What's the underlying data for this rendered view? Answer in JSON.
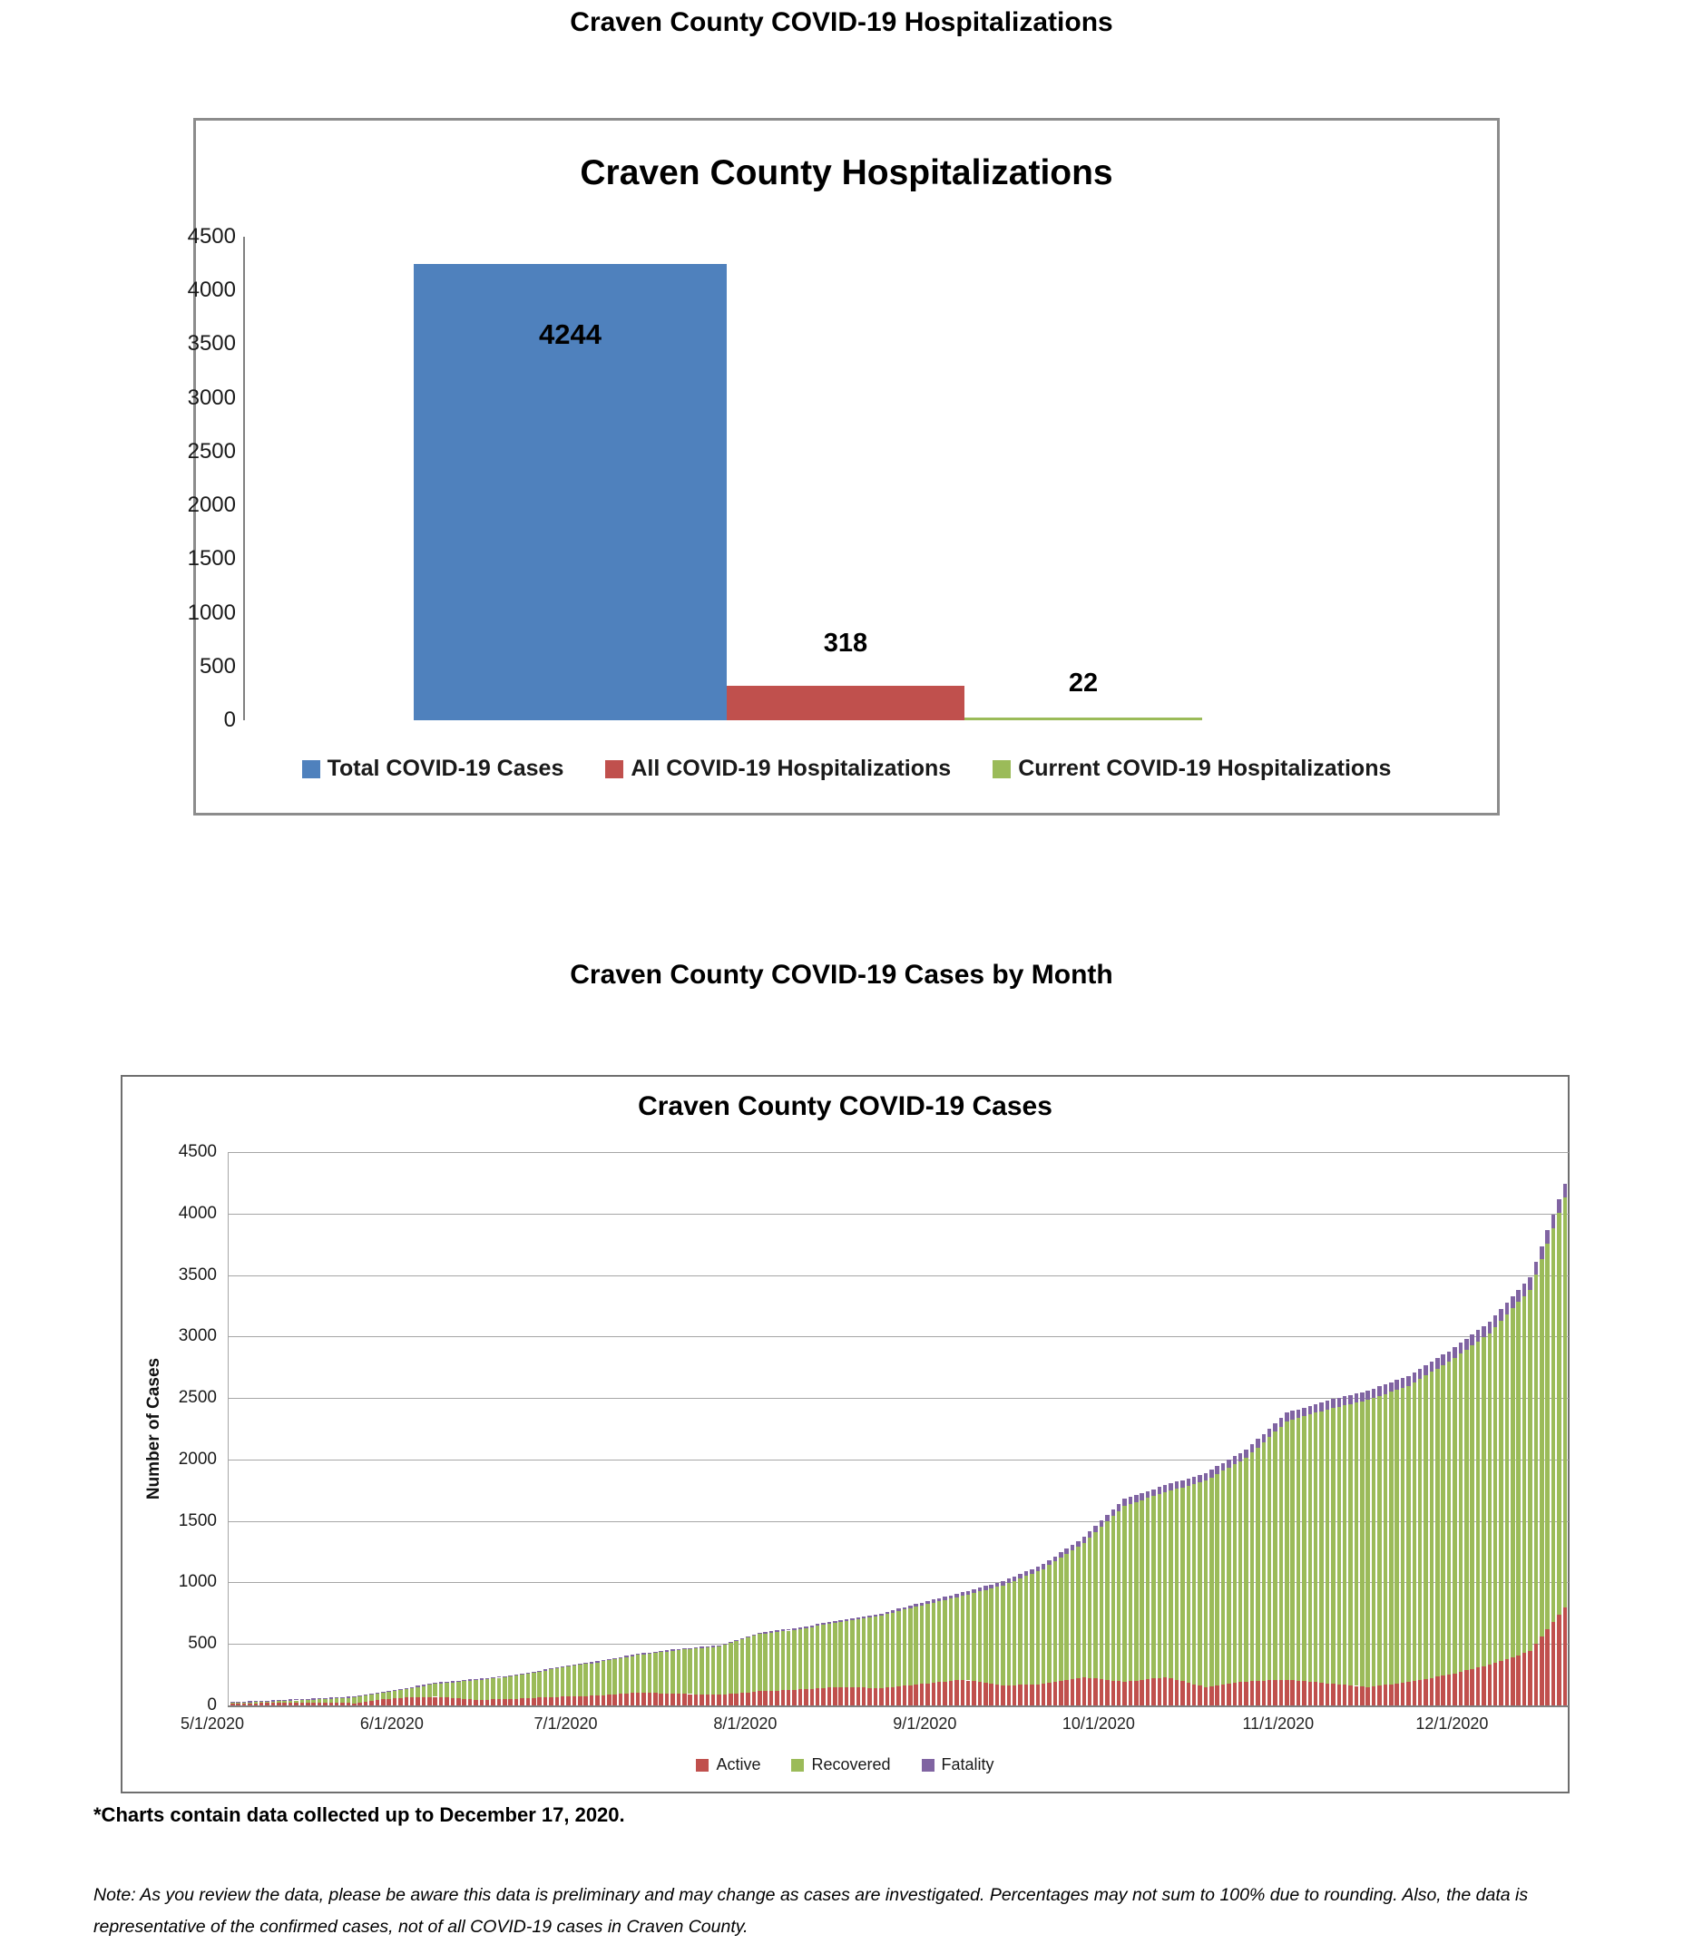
{
  "page": {
    "heading_top": "Craven County COVID-19 Hospitalizations",
    "heading_middle": "Craven County COVID-19 Cases by Month",
    "footnote": "*Charts contain data collected up to December 17, 2020.",
    "note": "Note: As you review the data, please be aware this data is preliminary and may change as cases are investigated. Percentages may not sum to 100% due to rounding. Also, the data is representative of the confirmed cases, not of all COVID-19 cases in Craven County."
  },
  "colors": {
    "blue": "#4F81BD",
    "red": "#C0504D",
    "green": "#9BBB59",
    "purple": "#8064A2",
    "gridline": "#A6A6A6",
    "axis": "#808080"
  },
  "chart_data": [
    {
      "type": "bar",
      "title": "Craven County Hospitalizations",
      "categories": [
        "Total COVID-19 Cases",
        "All COVID-19 Hospitalizations",
        "Current COVID-19 Hospitalizations"
      ],
      "values": [
        4244,
        318,
        22
      ],
      "data_labels": [
        "4244",
        "318",
        "22"
      ],
      "colors": [
        "#4F81BD",
        "#C0504D",
        "#9BBB59"
      ],
      "ylim": [
        0,
        4500
      ],
      "ytick_step": 500,
      "grid": false,
      "legend_position": "bottom"
    },
    {
      "type": "bar",
      "stacked": true,
      "title": "Craven County COVID-19 Cases",
      "ylabel": "Number of Cases",
      "ylim": [
        0,
        4500
      ],
      "ytick_step": 500,
      "grid": true,
      "legend_position": "bottom",
      "x_tick_labels": [
        "5/1/2020",
        "6/1/2020",
        "7/1/2020",
        "8/1/2020",
        "9/1/2020",
        "10/1/2020",
        "11/1/2020",
        "12/1/2020"
      ],
      "x_tick_days": [
        0,
        31,
        61,
        92,
        123,
        153,
        184,
        214
      ],
      "total_days": 231,
      "date_range": [
        "5/1/2020",
        "12/17/2020"
      ],
      "sampled_weekly_estimates": {
        "dates": [
          "5/1/2020",
          "5/8/2020",
          "5/15/2020",
          "5/22/2020",
          "5/29/2020",
          "6/5/2020",
          "6/12/2020",
          "6/19/2020",
          "6/26/2020",
          "7/3/2020",
          "7/10/2020",
          "7/17/2020",
          "7/24/2020",
          "7/31/2020",
          "8/7/2020",
          "8/14/2020",
          "8/21/2020",
          "8/28/2020",
          "9/4/2020",
          "9/11/2020",
          "9/18/2020",
          "9/25/2020",
          "10/2/2020",
          "10/9/2020",
          "10/16/2020",
          "10/23/2020",
          "10/30/2020",
          "11/6/2020",
          "11/13/2020",
          "11/20/2020",
          "11/27/2020",
          "12/4/2020",
          "12/11/2020",
          "12/17/2020"
        ],
        "day_offsets": [
          0,
          7,
          14,
          21,
          28,
          35,
          42,
          49,
          56,
          63,
          70,
          77,
          84,
          91,
          98,
          105,
          112,
          119,
          126,
          133,
          140,
          147,
          154,
          161,
          168,
          175,
          182,
          189,
          196,
          203,
          210,
          217,
          224,
          230
        ],
        "series": [
          {
            "name": "Active",
            "color": "#C0504D",
            "values": [
              15,
              20,
              22,
              18,
              60,
              70,
              45,
              55,
              70,
              80,
              105,
              95,
              85,
              115,
              130,
              150,
              140,
              175,
              210,
              160,
              175,
              230,
              190,
              230,
              150,
              195,
              210,
              180,
              150,
              190,
              250,
              330,
              440,
              800
            ]
          },
          {
            "name": "Recovered",
            "color": "#9BBB59",
            "values": [
              5,
              12,
              25,
              45,
              55,
              105,
              160,
              185,
              230,
              270,
              305,
              355,
              395,
              465,
              490,
              530,
              590,
              640,
              680,
              815,
              935,
              1092,
              1435,
              1502,
              1678,
              1819,
              2100,
              2227,
              2334,
              2410,
              2545,
              2698,
              2940,
              3334
            ]
          },
          {
            "name": "Fatality",
            "color": "#8064A2",
            "values": [
              1,
              2,
              3,
              4,
              5,
              6,
              6,
              7,
              7,
              8,
              8,
              9,
              10,
              12,
              14,
              16,
              18,
              22,
              30,
              35,
              40,
              48,
              55,
              58,
              62,
              66,
              70,
              73,
              76,
              80,
              85,
              92,
              100,
              110
            ]
          }
        ]
      }
    }
  ]
}
